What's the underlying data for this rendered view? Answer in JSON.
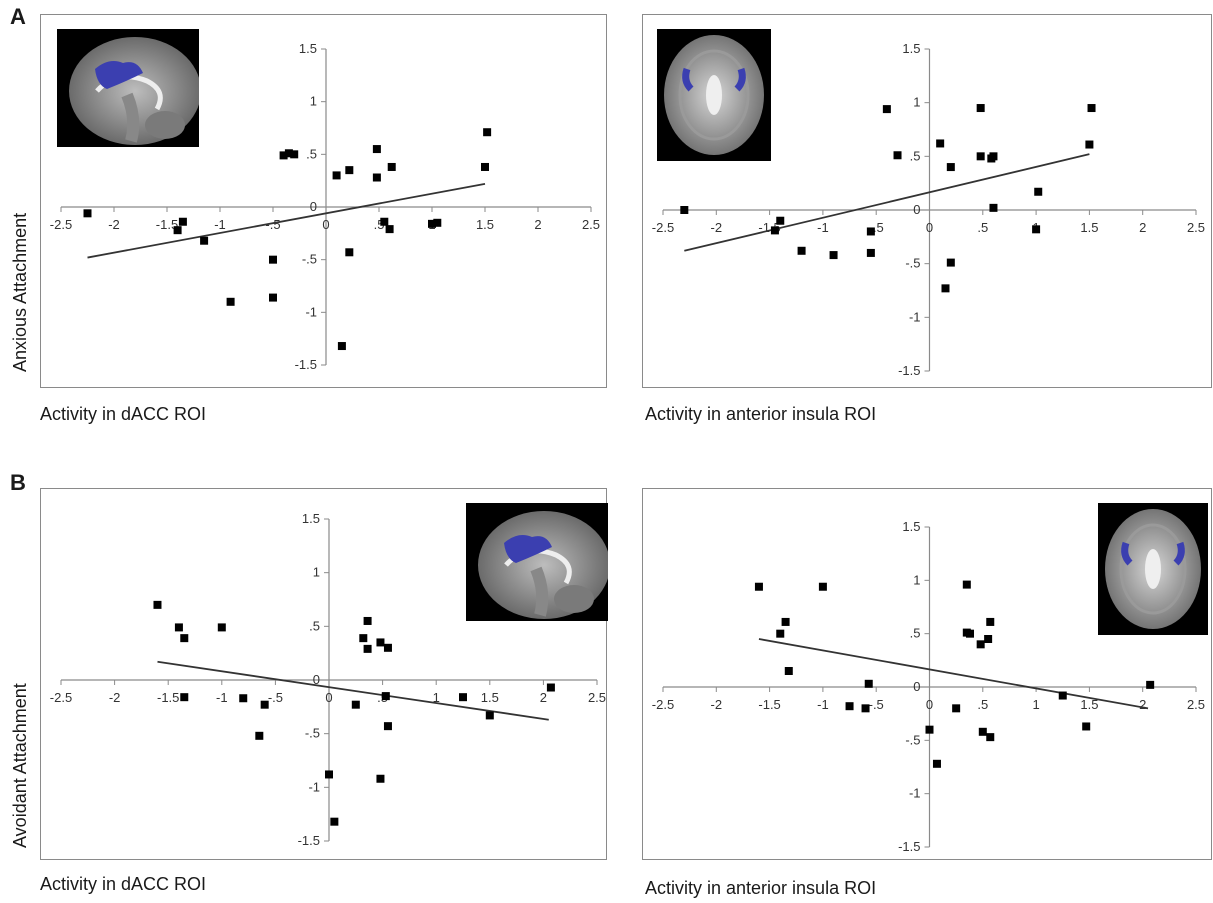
{
  "panel_labels": {
    "a": "A",
    "b": "B"
  },
  "ylabels": {
    "row_a": "Anxious Attachment",
    "row_b": "Avoidant Attachment"
  },
  "chart_data": [
    {
      "id": "a-dacc",
      "type": "scatter",
      "xlabel": "Activity in dACC ROI",
      "ylabel": "Anxious Attachment",
      "xlim": [
        -2.5,
        2.5
      ],
      "ylim": [
        -1.5,
        1.5
      ],
      "xticks": [
        -2.5,
        -2,
        -1.5,
        -1,
        -0.5,
        0,
        0.5,
        1,
        1.5,
        2,
        2.5
      ],
      "yticks": [
        -1.5,
        -1,
        -0.5,
        0,
        0.5,
        1,
        1.5
      ],
      "grid": false,
      "inset_image": "sagittal-brain-dACC",
      "trendline": {
        "x": [
          -2.25,
          1.5
        ],
        "y": [
          -0.48,
          0.22
        ]
      },
      "points": [
        {
          "x": -2.25,
          "y": -0.06
        },
        {
          "x": -1.4,
          "y": -0.22
        },
        {
          "x": -1.35,
          "y": -0.14
        },
        {
          "x": -1.15,
          "y": -0.32
        },
        {
          "x": -0.9,
          "y": -0.9
        },
        {
          "x": -0.5,
          "y": -0.5
        },
        {
          "x": -0.5,
          "y": -0.86
        },
        {
          "x": -0.4,
          "y": 0.49
        },
        {
          "x": -0.35,
          "y": 0.51
        },
        {
          "x": -0.3,
          "y": 0.5
        },
        {
          "x": 0.1,
          "y": 0.3
        },
        {
          "x": 0.15,
          "y": -1.32
        },
        {
          "x": 0.22,
          "y": 0.35
        },
        {
          "x": 0.22,
          "y": -0.43
        },
        {
          "x": 0.48,
          "y": 0.55
        },
        {
          "x": 0.48,
          "y": 0.28
        },
        {
          "x": 0.55,
          "y": -0.14
        },
        {
          "x": 0.6,
          "y": -0.21
        },
        {
          "x": 0.62,
          "y": 0.38
        },
        {
          "x": 1.0,
          "y": -0.16
        },
        {
          "x": 1.05,
          "y": -0.15
        },
        {
          "x": 1.5,
          "y": 0.38
        },
        {
          "x": 1.52,
          "y": 0.71
        }
      ]
    },
    {
      "id": "a-insula",
      "type": "scatter",
      "xlabel": "Activity in anterior insula ROI",
      "ylabel": "Anxious Attachment",
      "xlim": [
        -2.5,
        2.5
      ],
      "ylim": [
        -1.5,
        1.5
      ],
      "xticks": [
        -2.5,
        -2,
        -1.5,
        -1,
        -0.5,
        0,
        0.5,
        1,
        1.5,
        2,
        2.5
      ],
      "yticks": [
        -1.5,
        -1,
        -0.5,
        0,
        0.5,
        1,
        1.5
      ],
      "grid": false,
      "inset_image": "axial-brain-insula",
      "trendline": {
        "x": [
          -2.3,
          1.5
        ],
        "y": [
          -0.38,
          0.52
        ]
      },
      "points": [
        {
          "x": -2.3,
          "y": 0.0
        },
        {
          "x": -1.45,
          "y": -0.19
        },
        {
          "x": -1.4,
          "y": -0.1
        },
        {
          "x": -1.2,
          "y": -0.38
        },
        {
          "x": -0.9,
          "y": -0.42
        },
        {
          "x": -0.55,
          "y": -0.2
        },
        {
          "x": -0.55,
          "y": -0.4
        },
        {
          "x": -0.4,
          "y": 0.94
        },
        {
          "x": -0.3,
          "y": 0.51
        },
        {
          "x": 0.1,
          "y": 0.62
        },
        {
          "x": 0.15,
          "y": -0.73
        },
        {
          "x": 0.2,
          "y": 0.4
        },
        {
          "x": 0.2,
          "y": -0.49
        },
        {
          "x": 0.48,
          "y": 0.95
        },
        {
          "x": 0.48,
          "y": 0.5
        },
        {
          "x": 0.58,
          "y": 0.48
        },
        {
          "x": 0.6,
          "y": 0.5
        },
        {
          "x": 0.6,
          "y": 0.02
        },
        {
          "x": 1.0,
          "y": -0.18
        },
        {
          "x": 1.02,
          "y": 0.17
        },
        {
          "x": 1.5,
          "y": 0.61
        },
        {
          "x": 1.52,
          "y": 0.95
        }
      ]
    },
    {
      "id": "b-dacc",
      "type": "scatter",
      "xlabel": "Activity in dACC ROI",
      "ylabel": "Avoidant Attachment",
      "xlim": [
        -2.5,
        2.5
      ],
      "ylim": [
        -1.5,
        1.5
      ],
      "xticks": [
        -2.5,
        -2,
        -1.5,
        -1,
        -0.5,
        0,
        0.5,
        1,
        1.5,
        2,
        2.5
      ],
      "yticks": [
        -1.5,
        -1,
        -0.5,
        0,
        0.5,
        1,
        1.5
      ],
      "grid": false,
      "inset_image": "sagittal-brain-dACC",
      "trendline": {
        "x": [
          -1.6,
          2.05
        ],
        "y": [
          0.17,
          -0.37
        ]
      },
      "points": [
        {
          "x": -1.6,
          "y": 0.7
        },
        {
          "x": -1.4,
          "y": 0.49
        },
        {
          "x": -1.35,
          "y": 0.39
        },
        {
          "x": -1.35,
          "y": -0.16
        },
        {
          "x": -1.0,
          "y": 0.49
        },
        {
          "x": -0.8,
          "y": -0.17
        },
        {
          "x": -0.65,
          "y": -0.52
        },
        {
          "x": -0.6,
          "y": -0.23
        },
        {
          "x": 0.0,
          "y": -0.88
        },
        {
          "x": 0.05,
          "y": -1.32
        },
        {
          "x": 0.25,
          "y": -0.23
        },
        {
          "x": 0.32,
          "y": 0.39
        },
        {
          "x": 0.36,
          "y": 0.55
        },
        {
          "x": 0.36,
          "y": 0.29
        },
        {
          "x": 0.48,
          "y": 0.35
        },
        {
          "x": 0.48,
          "y": -0.92
        },
        {
          "x": 0.53,
          "y": -0.15
        },
        {
          "x": 0.55,
          "y": 0.3
        },
        {
          "x": 0.55,
          "y": -0.43
        },
        {
          "x": 1.25,
          "y": -0.16
        },
        {
          "x": 1.5,
          "y": -0.33
        },
        {
          "x": 2.07,
          "y": -0.07
        }
      ]
    },
    {
      "id": "b-insula",
      "type": "scatter",
      "xlabel": "Activity in anterior insula ROI",
      "ylabel": "Avoidant Attachment",
      "xlim": [
        -2.5,
        2.5
      ],
      "ylim": [
        -1.5,
        1.5
      ],
      "xticks": [
        -2.5,
        -2,
        -1.5,
        -1,
        -0.5,
        0,
        0.5,
        1,
        1.5,
        2,
        2.5
      ],
      "yticks": [
        -1.5,
        -1,
        -0.5,
        0,
        0.5,
        1,
        1.5
      ],
      "grid": false,
      "inset_image": "axial-brain-insula",
      "trendline": {
        "x": [
          -1.6,
          2.05
        ],
        "y": [
          0.45,
          -0.2
        ]
      },
      "points": [
        {
          "x": -1.6,
          "y": 0.94
        },
        {
          "x": -1.4,
          "y": 0.5
        },
        {
          "x": -1.35,
          "y": 0.61
        },
        {
          "x": -1.32,
          "y": 0.15
        },
        {
          "x": -1.0,
          "y": 0.94
        },
        {
          "x": -0.75,
          "y": -0.18
        },
        {
          "x": -0.6,
          "y": -0.2
        },
        {
          "x": -0.57,
          "y": 0.03
        },
        {
          "x": 0.0,
          "y": -0.4
        },
        {
          "x": 0.07,
          "y": -0.72
        },
        {
          "x": 0.25,
          "y": -0.2
        },
        {
          "x": 0.35,
          "y": 0.96
        },
        {
          "x": 0.35,
          "y": 0.51
        },
        {
          "x": 0.38,
          "y": 0.5
        },
        {
          "x": 0.48,
          "y": 0.4
        },
        {
          "x": 0.5,
          "y": -0.42
        },
        {
          "x": 0.55,
          "y": 0.45
        },
        {
          "x": 0.57,
          "y": 0.61
        },
        {
          "x": 0.57,
          "y": -0.47
        },
        {
          "x": 1.25,
          "y": -0.08
        },
        {
          "x": 1.47,
          "y": -0.37
        },
        {
          "x": 2.07,
          "y": 0.02
        }
      ]
    }
  ]
}
